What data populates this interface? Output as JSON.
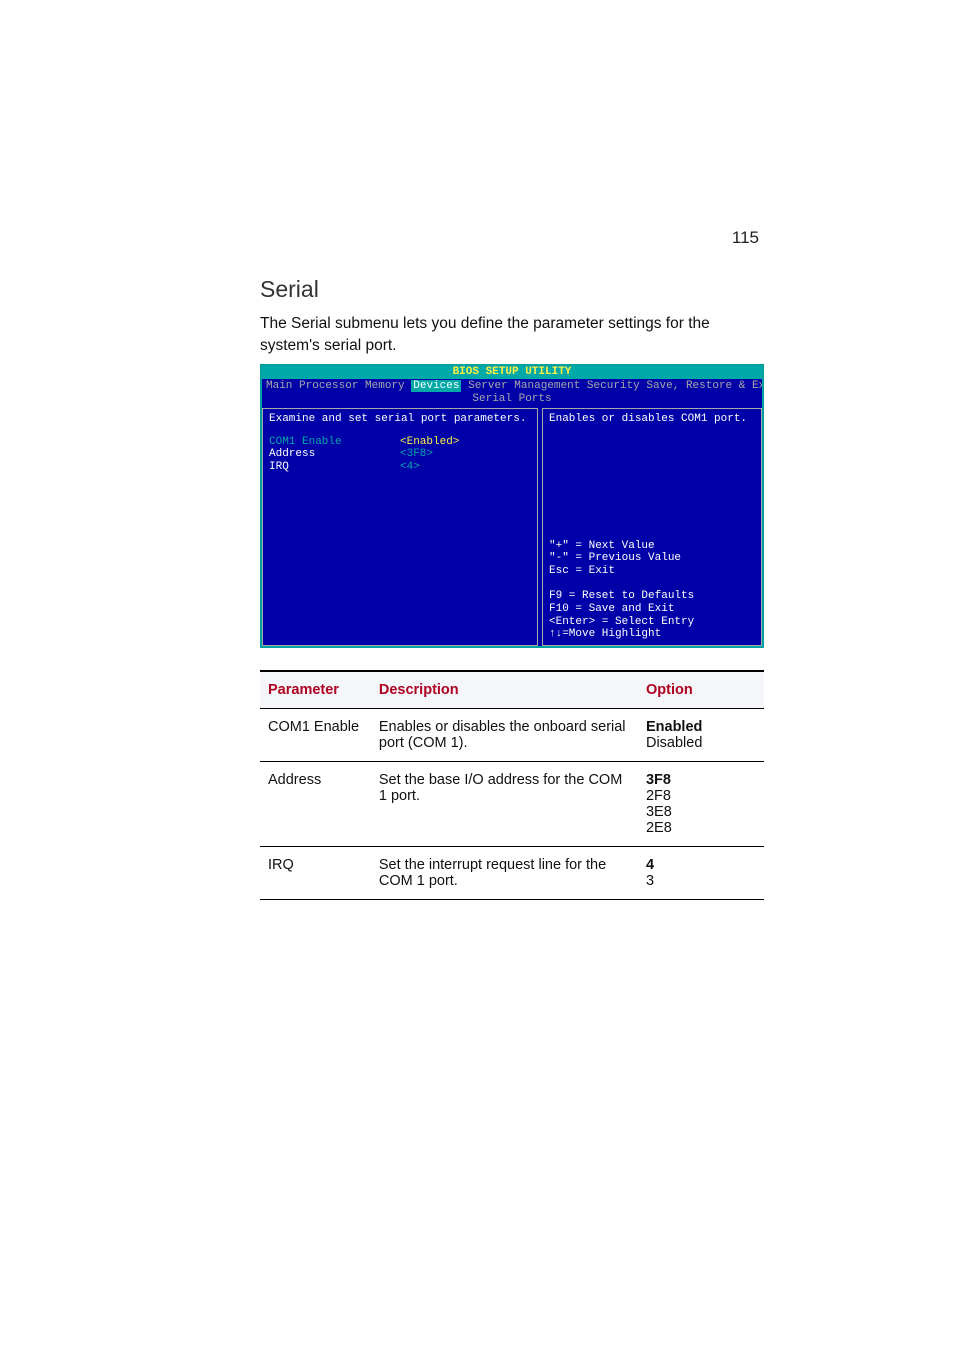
{
  "page_number": "115",
  "section_heading": "Serial",
  "section_desc": "The Serial submenu lets you define the parameter settings for the system's serial port.",
  "bios": {
    "title_bar": "BIOS SETUP UTILITY",
    "menu_items": [
      "Main",
      "Processor",
      "Memory",
      "Devices",
      "Server Management",
      "Security",
      "Save, Restore & Exit"
    ],
    "menu_selected_index": 3,
    "subtitle": "Serial Ports",
    "left_header": "Examine and set serial port parameters.",
    "rows": [
      {
        "label": "COM1 Enable",
        "value": "<Enabled>",
        "selected": true
      },
      {
        "label": "Address",
        "value": "<3F8>",
        "selected": false
      },
      {
        "label": "IRQ",
        "value": "<4>",
        "selected": false
      }
    ],
    "help_top": "Enables or disables COM1 port.",
    "help_bottom": [
      "\"+\" = Next Value",
      "\"-\" = Previous Value",
      "Esc = Exit",
      "",
      "F9 = Reset to Defaults",
      "F10 = Save and Exit",
      "<Enter> = Select Entry",
      "↑↓=Move Highlight"
    ],
    "colors": {
      "bg": "#0000a8",
      "border": "#a8a8a8",
      "title_bg": "#00a8a8",
      "title_fg": "#fff042",
      "text": "#ffffff",
      "value": "#00a8a8",
      "selected_value": "#fff042"
    }
  },
  "table": {
    "headers": {
      "parameter": "Parameter",
      "description": "Description",
      "option": "Option"
    },
    "rows": [
      {
        "parameter": "COM1 Enable",
        "description": "Enables or disables the onboard serial port (COM 1).",
        "options": [
          {
            "text": "Enabled",
            "bold": true
          },
          {
            "text": "Disabled",
            "bold": false
          }
        ]
      },
      {
        "parameter": "Address",
        "description": "Set the base I/O address for the COM 1 port.",
        "options": [
          {
            "text": "3F8",
            "bold": true
          },
          {
            "text": "2F8",
            "bold": false
          },
          {
            "text": "3E8",
            "bold": false
          },
          {
            "text": "2E8",
            "bold": false
          }
        ]
      },
      {
        "parameter": "IRQ",
        "description": "Set the interrupt request line for the COM 1 port.",
        "options": [
          {
            "text": "4",
            "bold": true
          },
          {
            "text": "3",
            "bold": false
          }
        ]
      }
    ]
  }
}
